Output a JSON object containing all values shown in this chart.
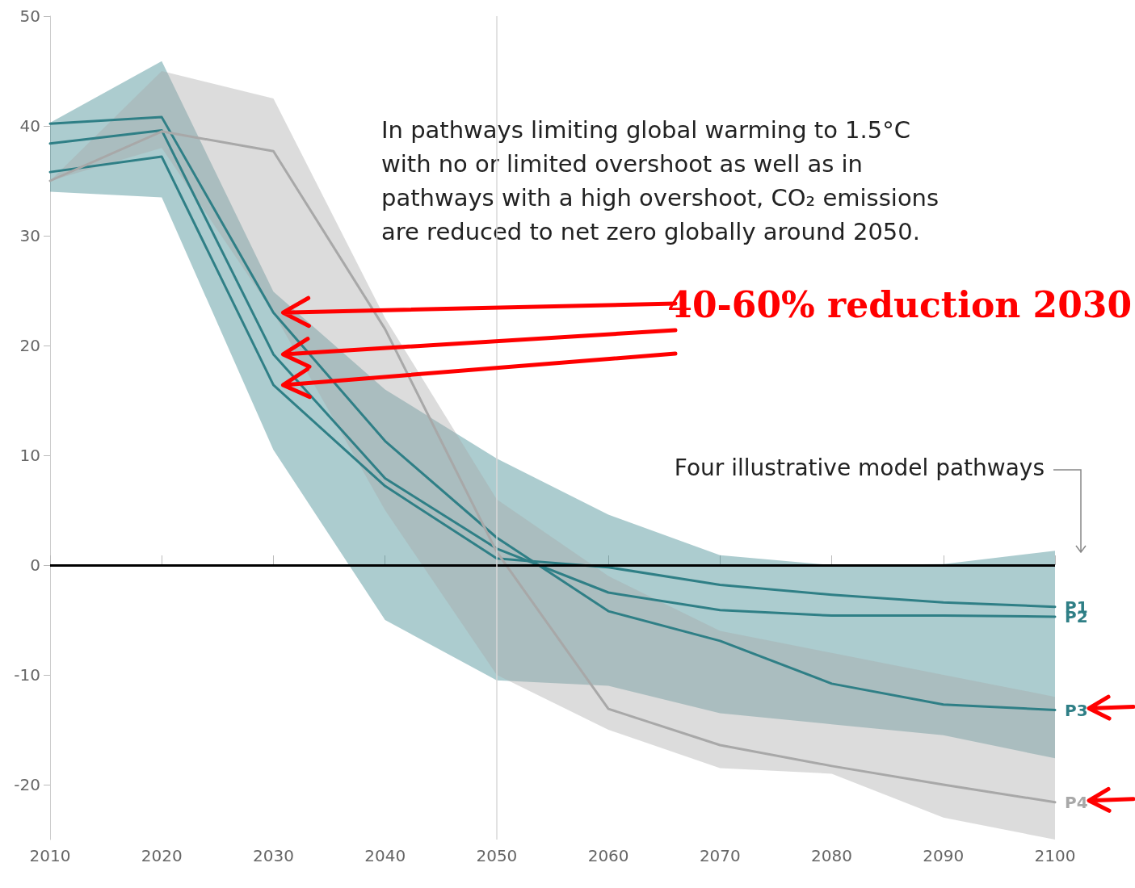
{
  "chart_data": {
    "type": "line",
    "annotations": [
      "In pathways limiting global warming to 1.5°C with no or limited overshoot as well as in pathways with a high overshoot, CO₂ emissions are reduced to net zero globally around 2050.",
      "40-60% reduction 2030",
      "Four illustrative model pathways"
    ],
    "series": [
      {
        "name": "P1",
        "color": "#2f7f86",
        "x": [
          2010,
          2020,
          2030,
          2040,
          2050,
          2060,
          2070,
          2080,
          2090,
          2100
        ],
        "values": [
          35.8,
          37.2,
          16.4,
          7.2,
          0.6,
          -0.2,
          -1.8,
          -2.7,
          -3.4,
          -3.8
        ]
      },
      {
        "name": "P2",
        "color": "#2f7f86",
        "x": [
          2010,
          2020,
          2030,
          2040,
          2050,
          2060,
          2070,
          2080,
          2090,
          2100
        ],
        "values": [
          38.4,
          39.6,
          19.2,
          7.9,
          1.5,
          -2.5,
          -4.1,
          -4.6,
          -4.6,
          -4.7
        ]
      },
      {
        "name": "P3",
        "color": "#2f7f86",
        "x": [
          2010,
          2020,
          2030,
          2040,
          2050,
          2060,
          2070,
          2080,
          2090,
          2100
        ],
        "values": [
          40.2,
          40.8,
          23,
          11.3,
          2.5,
          -4.2,
          -6.9,
          -10.8,
          -12.7,
          -13.2
        ],
        "lower": [
          34,
          33.5,
          10.5,
          -5,
          -10.5,
          -11,
          -13.5,
          -14.5,
          -15.5,
          -17.6
        ],
        "upper": [
          40.3,
          45.9,
          24.9,
          16,
          9.7,
          4.6,
          0.9,
          0,
          0.1,
          1.3
        ]
      },
      {
        "name": "P4",
        "color": "#a8a8a8",
        "x": [
          2010,
          2020,
          2030,
          2040,
          2050,
          2060,
          2070,
          2080,
          2090,
          2100
        ],
        "values": [
          35,
          39.5,
          37.7,
          21.5,
          1.2,
          -13.1,
          -16.4,
          -18.3,
          -20,
          -21.6
        ],
        "lower": [
          35,
          38,
          23,
          5,
          -10,
          -15,
          -18.5,
          -19,
          -23,
          -25
        ],
        "upper": [
          35,
          45,
          42.5,
          22.5,
          6,
          -1,
          -6,
          -8,
          -10,
          -12
        ]
      }
    ],
    "xlim": [
      2010,
      2100
    ],
    "xticks": [
      2010,
      2020,
      2030,
      2040,
      2050,
      2060,
      2070,
      2080,
      2090,
      2100
    ],
    "ylim": [
      -25,
      50
    ],
    "yticks": [
      -20,
      -10,
      0,
      10,
      20,
      30,
      40,
      50
    ],
    "ref_lines": [
      {
        "axis": "y",
        "value": 0,
        "color": "#000000"
      },
      {
        "axis": "x",
        "value": 2050,
        "color": "#d9d9d9"
      }
    ],
    "grid": false,
    "legend": false,
    "marker": "none",
    "line_style": "solid"
  }
}
